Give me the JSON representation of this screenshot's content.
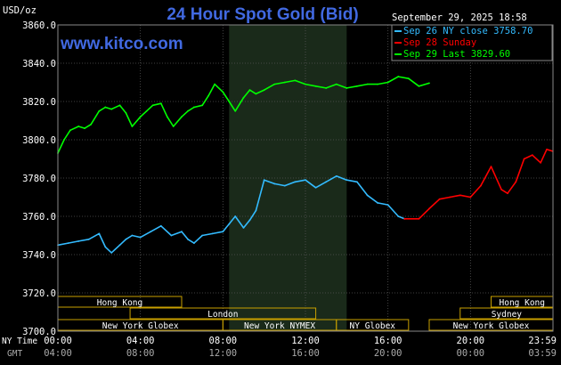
{
  "chart_data": {
    "type": "line",
    "title": "24 Hour Spot Gold (Bid)",
    "watermark": "www.kitco.com",
    "timestamp": "September 29, 2025 18:58",
    "y_unit_label": "USD/oz",
    "ylim": [
      3700,
      3860
    ],
    "y_ticks": [
      "3860.0",
      "3840.0",
      "3820.0",
      "3800.0",
      "3780.0",
      "3760.0",
      "3740.0",
      "3720.0",
      "3700.0"
    ],
    "x_axis_labels": {
      "row1_label": "NY Time",
      "row2_label": "GMT",
      "ny_time": [
        "00:00",
        "04:00",
        "08:00",
        "12:00",
        "16:00",
        "20:00",
        "23:59"
      ],
      "gmt": [
        "04:00",
        "08:00",
        "12:00",
        "16:00",
        "20:00",
        "00:00",
        "03:59"
      ]
    },
    "grid": true,
    "legend_position": "top-right",
    "series": [
      {
        "name": "Sep 26 NY close 3758.70",
        "color": "#33bbff",
        "x_hours": [
          0.0,
          0.5,
          1.0,
          1.5,
          2.0,
          2.3,
          2.6,
          3.0,
          3.3,
          3.6,
          4.0,
          4.5,
          5.0,
          5.5,
          6.0,
          6.3,
          6.6,
          7.0,
          7.5,
          8.0,
          8.3,
          8.6,
          9.0,
          9.3,
          9.6,
          10.0,
          10.5,
          11.0,
          11.5,
          12.0,
          12.5,
          13.0,
          13.5,
          14.0,
          14.5,
          15.0,
          15.5,
          16.0,
          16.5,
          16.8
        ],
        "values": [
          3745,
          3746,
          3747,
          3748,
          3751,
          3744,
          3741,
          3745,
          3748,
          3750,
          3749,
          3752,
          3755,
          3750,
          3752,
          3748,
          3746,
          3750,
          3751,
          3752,
          3756,
          3760,
          3754,
          3758,
          3763,
          3779,
          3777,
          3776,
          3778,
          3779,
          3775,
          3778,
          3781,
          3779,
          3778,
          3771,
          3767,
          3766,
          3760,
          3758.7
        ]
      },
      {
        "name": "Sep 28 Sunday",
        "color": "#ff0000",
        "x_hours": [
          16.8,
          17.5,
          18.0,
          18.5,
          19.0,
          19.5,
          20.0,
          20.5,
          21.0,
          21.5,
          21.8,
          22.2,
          22.6,
          23.0,
          23.4,
          23.7,
          23.99
        ],
        "values": [
          3758.7,
          3758.7,
          3764,
          3769,
          3770,
          3771,
          3770,
          3776,
          3786,
          3774,
          3772,
          3778,
          3790,
          3792,
          3788,
          3795,
          3794
        ]
      },
      {
        "name": "Sep 29 Last 3829.60",
        "color": "#00ff00",
        "x_hours": [
          0.0,
          0.3,
          0.6,
          1.0,
          1.3,
          1.6,
          2.0,
          2.3,
          2.6,
          3.0,
          3.3,
          3.6,
          4.0,
          4.3,
          4.6,
          5.0,
          5.3,
          5.6,
          6.0,
          6.3,
          6.6,
          7.0,
          7.3,
          7.6,
          8.0,
          8.3,
          8.6,
          9.0,
          9.3,
          9.6,
          10.0,
          10.5,
          11.0,
          11.5,
          12.0,
          12.5,
          13.0,
          13.5,
          14.0,
          14.5,
          15.0,
          15.5,
          16.0,
          16.5,
          17.0,
          17.5,
          18.0
        ],
        "values": [
          3793,
          3800,
          3805,
          3807,
          3806,
          3808,
          3815,
          3817,
          3816,
          3818,
          3814,
          3807,
          3812,
          3815,
          3818,
          3819,
          3812,
          3807,
          3812,
          3815,
          3817,
          3818,
          3823,
          3829,
          3825,
          3820,
          3815,
          3822,
          3826,
          3824,
          3826,
          3829,
          3830,
          3831,
          3829,
          3828,
          3827,
          3829,
          3827,
          3828,
          3829,
          3829,
          3830,
          3833,
          3832,
          3828,
          3829.6
        ]
      }
    ]
  },
  "sessions": {
    "upper": [
      {
        "label": "Hong Kong",
        "start_hr": 0.0,
        "end_hr": 6.0
      },
      {
        "label": "Hong Kong",
        "start_hr": 21.0,
        "end_hr": 24.0
      }
    ],
    "middle": [
      {
        "label": "London",
        "start_hr": 3.5,
        "end_hr": 12.5
      },
      {
        "label": "Sydney",
        "start_hr": 19.5,
        "end_hr": 24.0
      }
    ],
    "lower": [
      {
        "label": "New York Globex",
        "start_hr": 0.0,
        "end_hr": 8.0
      },
      {
        "label": "New York NYMEX",
        "start_hr": 8.0,
        "end_hr": 13.5
      },
      {
        "label": "NY Globex",
        "start_hr": 13.5,
        "end_hr": 17.0
      },
      {
        "label": "New York Globex",
        "start_hr": 18.0,
        "end_hr": 24.0
      }
    ]
  },
  "shaded_hours": [
    8.3,
    14.0
  ]
}
